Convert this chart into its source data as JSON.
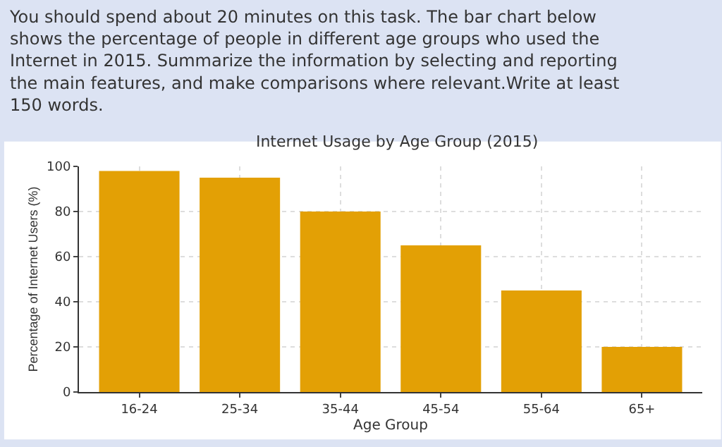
{
  "chart_data": {
    "type": "bar",
    "title": "Internet Usage by Age Group (2015)",
    "xlabel": "Age Group",
    "ylabel": "Percentage of Internet Users (%)",
    "annotations": [
      "You should spend about 20 minutes on this task. The bar chart below shows the percentage of people in different age groups who used the Internet in 2015. Summarize the information by selecting and reporting the main features, and make comparisons where relevant.Write at least 150 words."
    ],
    "categories": [
      "16-24",
      "25-34",
      "35-44",
      "45-54",
      "55-64",
      "65+"
    ],
    "values": [
      98,
      95,
      80,
      65,
      45,
      20
    ],
    "color": "#e3a005",
    "ylim": [
      0,
      100
    ],
    "yticks": [
      0,
      20,
      40,
      60,
      80,
      100
    ],
    "grid": true,
    "legend": false
  }
}
